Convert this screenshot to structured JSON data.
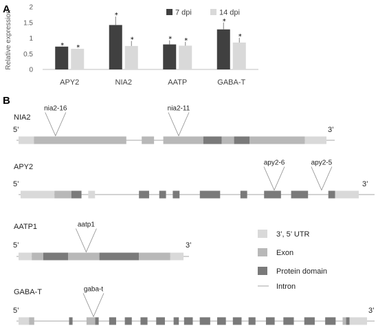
{
  "panels": {
    "a": "A",
    "b": "B"
  },
  "colors": {
    "dpi7": "#404040",
    "dpi14": "#d9d9d9",
    "utr": "#d9d9d9",
    "exon": "#b8b8b8",
    "domain": "#7a7a7a",
    "intron": "#a6a6a6"
  },
  "chart_data": {
    "type": "bar",
    "title": "",
    "xlabel": "",
    "ylabel": "Relative expression",
    "ylim": [
      0,
      2
    ],
    "yticks": [
      "0",
      "0.5",
      "1",
      "1.5",
      "2"
    ],
    "grid": false,
    "legend_placement": "top-right",
    "categories": [
      "APY2",
      "NIA2",
      "AATP",
      "GABA-T"
    ],
    "series": [
      {
        "name": "7 dpi",
        "values": [
          0.73,
          1.42,
          0.8,
          1.28
        ],
        "errors": [
          0.0,
          0.27,
          0.13,
          0.22
        ],
        "marks": [
          "*",
          "*",
          "*",
          "*"
        ]
      },
      {
        "name": "14 dpi",
        "values": [
          0.66,
          0.75,
          0.76,
          0.86
        ],
        "errors": [
          0.0,
          0.16,
          0.12,
          0.15
        ],
        "marks": [
          "*",
          "*",
          "*",
          "*"
        ]
      }
    ]
  },
  "genes": [
    {
      "name": "NIA2",
      "five": "5’",
      "three": "3’",
      "span": [
        0,
        100
      ],
      "segments": [
        {
          "t": "utr",
          "s": 0,
          "e": 5
        },
        {
          "t": "exon",
          "s": 5,
          "e": 35
        },
        {
          "t": "exon",
          "s": 40,
          "e": 44
        },
        {
          "t": "exon",
          "s": 47,
          "e": 60
        },
        {
          "t": "domain",
          "s": 60,
          "e": 66
        },
        {
          "t": "exon",
          "s": 66,
          "e": 70
        },
        {
          "t": "domain",
          "s": 70,
          "e": 75
        },
        {
          "t": "exon",
          "s": 75,
          "e": 93
        },
        {
          "t": "utr",
          "s": 93,
          "e": 100
        }
      ],
      "insertions": [
        {
          "label": "nia2-16",
          "pos": 12
        },
        {
          "label": "nia2-11",
          "pos": 52
        }
      ]
    },
    {
      "name": "APY2",
      "five": "5’",
      "three": "3’",
      "span": [
        0,
        100
      ],
      "segments": [
        {
          "t": "utr",
          "s": 0,
          "e": 10
        },
        {
          "t": "exon",
          "s": 10,
          "e": 15
        },
        {
          "t": "domain",
          "s": 15,
          "e": 18
        },
        {
          "t": "utr",
          "s": 20,
          "e": 22
        },
        {
          "t": "domain",
          "s": 35,
          "e": 38
        },
        {
          "t": "domain",
          "s": 41,
          "e": 43
        },
        {
          "t": "domain",
          "s": 45,
          "e": 47
        },
        {
          "t": "domain",
          "s": 53,
          "e": 59
        },
        {
          "t": "domain",
          "s": 65,
          "e": 67
        },
        {
          "t": "domain",
          "s": 72,
          "e": 77
        },
        {
          "t": "domain",
          "s": 80,
          "e": 85
        },
        {
          "t": "domain",
          "s": 91,
          "e": 93
        },
        {
          "t": "utr",
          "s": 93,
          "e": 100
        }
      ],
      "insertions": [
        {
          "label": "apy2-6",
          "pos": 75
        },
        {
          "label": "apy2-5",
          "pos": 89
        }
      ]
    },
    {
      "name": "AATP1",
      "five": "5’",
      "three": "3’",
      "span": [
        0,
        100
      ],
      "segments": [
        {
          "t": "utr",
          "s": 0,
          "e": 8
        },
        {
          "t": "exon",
          "s": 8,
          "e": 15
        },
        {
          "t": "domain",
          "s": 15,
          "e": 30
        },
        {
          "t": "exon",
          "s": 30,
          "e": 49
        },
        {
          "t": "domain",
          "s": 49,
          "e": 73
        },
        {
          "t": "exon",
          "s": 73,
          "e": 92
        },
        {
          "t": "utr",
          "s": 92,
          "e": 100
        }
      ],
      "insertions": [
        {
          "label": "aatp1",
          "pos": 41
        }
      ]
    },
    {
      "name": "GABA-T",
      "five": "5’",
      "three": "3’",
      "span": [
        0,
        100
      ],
      "segments": [
        {
          "t": "utr",
          "s": 0,
          "e": 3
        },
        {
          "t": "exon",
          "s": 3,
          "e": 4.5
        },
        {
          "t": "domain",
          "s": 14.5,
          "e": 15.5
        },
        {
          "t": "exon",
          "s": 19.5,
          "e": 22
        },
        {
          "t": "domain",
          "s": 22,
          "e": 23
        },
        {
          "t": "domain",
          "s": 26,
          "e": 28
        },
        {
          "t": "domain",
          "s": 30.5,
          "e": 32.5
        },
        {
          "t": "domain",
          "s": 35,
          "e": 37
        },
        {
          "t": "domain",
          "s": 39.5,
          "e": 42
        },
        {
          "t": "domain",
          "s": 44.5,
          "e": 46
        },
        {
          "t": "domain",
          "s": 47.5,
          "e": 50
        },
        {
          "t": "domain",
          "s": 52,
          "e": 55
        },
        {
          "t": "domain",
          "s": 57,
          "e": 59.5
        },
        {
          "t": "domain",
          "s": 61.5,
          "e": 64
        },
        {
          "t": "domain",
          "s": 66,
          "e": 68
        },
        {
          "t": "domain",
          "s": 71,
          "e": 73.5
        },
        {
          "t": "domain",
          "s": 76,
          "e": 79
        },
        {
          "t": "domain",
          "s": 82,
          "e": 85
        },
        {
          "t": "domain",
          "s": 88,
          "e": 91
        },
        {
          "t": "exon",
          "s": 93,
          "e": 94
        },
        {
          "t": "domain",
          "s": 94,
          "e": 95
        },
        {
          "t": "utr",
          "s": 95,
          "e": 100
        }
      ],
      "insertions": [
        {
          "label": "gaba-t",
          "pos": 21.5
        }
      ]
    }
  ],
  "key": {
    "utr": "3’, 5’ UTR",
    "exon": "Exon",
    "domain": "Protein domain",
    "intron": "Intron"
  }
}
